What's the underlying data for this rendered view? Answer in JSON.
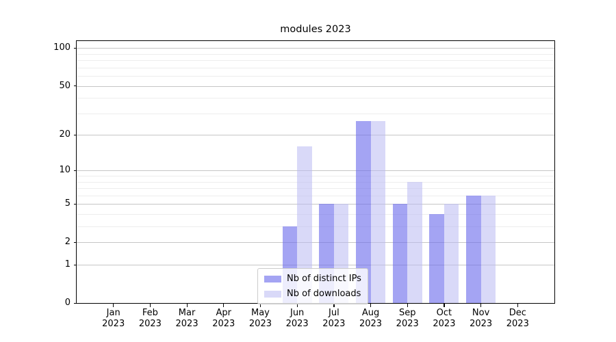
{
  "chart_data": {
    "type": "bar",
    "title": "modules 2023",
    "categories": [
      "Jan 2023",
      "Feb 2023",
      "Mar 2023",
      "Apr 2023",
      "May 2023",
      "Jun 2023",
      "Jul 2023",
      "Aug 2023",
      "Sep 2023",
      "Oct 2023",
      "Nov 2023",
      "Dec 2023"
    ],
    "series": [
      {
        "name": "Nb of distinct IPs",
        "color": "rgba(108,108,236,0.62)",
        "values": [
          0,
          0,
          0,
          0,
          0,
          3,
          5,
          26,
          5,
          4,
          6,
          0
        ]
      },
      {
        "name": "Nb of downloads",
        "color": "rgba(185,185,242,0.55)",
        "values": [
          0,
          0,
          0,
          0,
          0,
          16,
          5,
          26,
          8,
          5,
          6,
          0
        ]
      }
    ],
    "yscale": "log1p",
    "ylim": [
      0,
      114
    ],
    "y_major_ticks": [
      100,
      50,
      20,
      10,
      5,
      2,
      1,
      0
    ],
    "y_minor_ticks": [
      3,
      4,
      6,
      7,
      8,
      9,
      30,
      40,
      60,
      70,
      80,
      90
    ],
    "grid": true,
    "legend_position": "lower center"
  },
  "colors": {
    "major_grid": "#c6c6c6",
    "minor_grid": "#ededed",
    "axis": "#000000",
    "background": "#ffffff"
  }
}
